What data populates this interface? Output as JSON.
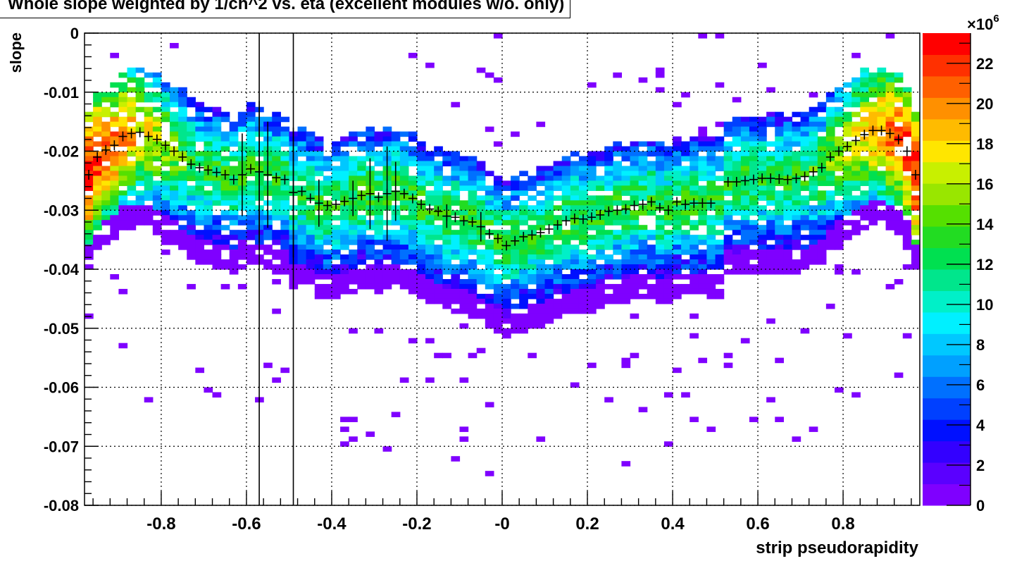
{
  "chart_data": {
    "type": "heatmap",
    "title": "Whole slope weighted by 1/ch^2 vs. eta (excellent modules w/o. only)",
    "xlabel": "strip pseudorapidity",
    "ylabel": "slope",
    "xlim": [
      -0.98,
      0.98
    ],
    "ylim": [
      -0.08,
      0.0
    ],
    "grid": true,
    "x_tick_labels": [
      "-0.8",
      "-0.6",
      "-0.4",
      "-0.2",
      "-0",
      "0.2",
      "0.4",
      "0.6",
      "0.8"
    ],
    "x_ticks": [
      -0.8,
      -0.6,
      -0.4,
      -0.2,
      0.0,
      0.2,
      0.4,
      0.6,
      0.8
    ],
    "y_tick_labels": [
      "0",
      "-0.01",
      "-0.02",
      "-0.03",
      "-0.04",
      "-0.05",
      "-0.06",
      "-0.07",
      "-0.08"
    ],
    "y_ticks": [
      0.0,
      -0.01,
      -0.02,
      -0.03,
      -0.04,
      -0.05,
      -0.06,
      -0.07,
      -0.08
    ],
    "colorbar": {
      "min": 0,
      "max": 23.5,
      "exponent_label": "×10",
      "exponent": "6",
      "tick_labels": [
        "0",
        "2",
        "4",
        "6",
        "8",
        "10",
        "12",
        "14",
        "16",
        "18",
        "20",
        "22"
      ],
      "ticks": [
        0,
        2,
        4,
        6,
        8,
        10,
        12,
        14,
        16,
        18,
        20,
        22
      ],
      "palette": [
        "#7f00ff",
        "#5a00ff",
        "#3300ff",
        "#0010ff",
        "#0040ff",
        "#0070ff",
        "#00a0ff",
        "#00c8ff",
        "#00f0ff",
        "#00f0c8",
        "#00e68c",
        "#00e050",
        "#22dc22",
        "#55e000",
        "#99e600",
        "#c8f000",
        "#ffe600",
        "#ffbb00",
        "#ff9000",
        "#ff6000",
        "#ff3000",
        "#ff0000"
      ]
    },
    "profile_points": [
      [
        -0.97,
        -0.024
      ],
      [
        -0.95,
        -0.021
      ],
      [
        -0.93,
        -0.0198
      ],
      [
        -0.91,
        -0.019
      ],
      [
        -0.89,
        -0.0175
      ],
      [
        -0.87,
        -0.017
      ],
      [
        -0.85,
        -0.0168
      ],
      [
        -0.83,
        -0.0175
      ],
      [
        -0.81,
        -0.018
      ],
      [
        -0.79,
        -0.019
      ],
      [
        -0.77,
        -0.02
      ],
      [
        -0.75,
        -0.021
      ],
      [
        -0.73,
        -0.0222
      ],
      [
        -0.71,
        -0.0228
      ],
      [
        -0.69,
        -0.0232
      ],
      [
        -0.67,
        -0.0236
      ],
      [
        -0.65,
        -0.024
      ],
      [
        -0.63,
        -0.0248
      ],
      [
        -0.61,
        -0.024
      ],
      [
        -0.59,
        -0.023
      ],
      [
        -0.57,
        -0.0235
      ],
      [
        -0.55,
        -0.024
      ],
      [
        -0.53,
        -0.0245
      ],
      [
        -0.51,
        -0.0248
      ],
      [
        -0.49,
        -0.027
      ],
      [
        -0.47,
        -0.0268
      ],
      [
        -0.45,
        -0.028
      ],
      [
        -0.43,
        -0.0288
      ],
      [
        -0.41,
        -0.0292
      ],
      [
        -0.39,
        -0.029
      ],
      [
        -0.37,
        -0.0285
      ],
      [
        -0.35,
        -0.028
      ],
      [
        -0.33,
        -0.0275
      ],
      [
        -0.31,
        -0.0272
      ],
      [
        -0.29,
        -0.0278
      ],
      [
        -0.27,
        -0.0272
      ],
      [
        -0.25,
        -0.0268
      ],
      [
        -0.23,
        -0.0272
      ],
      [
        -0.21,
        -0.028
      ],
      [
        -0.19,
        -0.029
      ],
      [
        -0.17,
        -0.0298
      ],
      [
        -0.15,
        -0.0302
      ],
      [
        -0.13,
        -0.031
      ],
      [
        -0.11,
        -0.0312
      ],
      [
        -0.09,
        -0.0318
      ],
      [
        -0.07,
        -0.032
      ],
      [
        -0.05,
        -0.0328
      ],
      [
        -0.03,
        -0.034
      ],
      [
        -0.01,
        -0.0348
      ],
      [
        0.01,
        -0.036
      ],
      [
        0.03,
        -0.0352
      ],
      [
        0.05,
        -0.0345
      ],
      [
        0.07,
        -0.0342
      ],
      [
        0.09,
        -0.0338
      ],
      [
        0.11,
        -0.0332
      ],
      [
        0.13,
        -0.0325
      ],
      [
        0.15,
        -0.0318
      ],
      [
        0.17,
        -0.0314
      ],
      [
        0.19,
        -0.0315
      ],
      [
        0.21,
        -0.0312
      ],
      [
        0.23,
        -0.0308
      ],
      [
        0.25,
        -0.0302
      ],
      [
        0.27,
        -0.03
      ],
      [
        0.29,
        -0.0298
      ],
      [
        0.31,
        -0.0292
      ],
      [
        0.33,
        -0.029
      ],
      [
        0.35,
        -0.0286
      ],
      [
        0.37,
        -0.0296
      ],
      [
        0.39,
        -0.03
      ],
      [
        0.41,
        -0.0286
      ],
      [
        0.43,
        -0.029
      ],
      [
        0.45,
        -0.0288
      ],
      [
        0.47,
        -0.0288
      ],
      [
        0.49,
        -0.0288
      ],
      [
        0.53,
        -0.0252
      ],
      [
        0.55,
        -0.0252
      ],
      [
        0.57,
        -0.025
      ],
      [
        0.59,
        -0.0248
      ],
      [
        0.61,
        -0.0246
      ],
      [
        0.63,
        -0.0246
      ],
      [
        0.65,
        -0.0247
      ],
      [
        0.67,
        -0.0248
      ],
      [
        0.69,
        -0.0246
      ],
      [
        0.71,
        -0.0243
      ],
      [
        0.73,
        -0.0235
      ],
      [
        0.75,
        -0.0228
      ],
      [
        0.77,
        -0.021
      ],
      [
        0.79,
        -0.02
      ],
      [
        0.81,
        -0.0192
      ],
      [
        0.83,
        -0.0182
      ],
      [
        0.85,
        -0.0172
      ],
      [
        0.87,
        -0.0165
      ],
      [
        0.89,
        -0.0165
      ],
      [
        0.91,
        -0.017
      ],
      [
        0.93,
        -0.018
      ],
      [
        0.95,
        -0.02
      ],
      [
        0.97,
        -0.024
      ]
    ],
    "profile_errors": [
      [
        -0.57,
        0.012
      ],
      [
        -0.49,
        0.011
      ],
      [
        -0.55,
        0.009
      ],
      [
        -0.61,
        0.007
      ],
      [
        -0.43,
        0.004
      ],
      [
        -0.35,
        0.003
      ],
      [
        -0.31,
        0.006
      ],
      [
        -0.27,
        0.008
      ],
      [
        -0.25,
        0.005
      ],
      [
        -0.13,
        0.002
      ],
      [
        -0.05,
        0.0025
      ]
    ],
    "vertical_lines_x": [
      -0.57,
      -0.49
    ]
  }
}
